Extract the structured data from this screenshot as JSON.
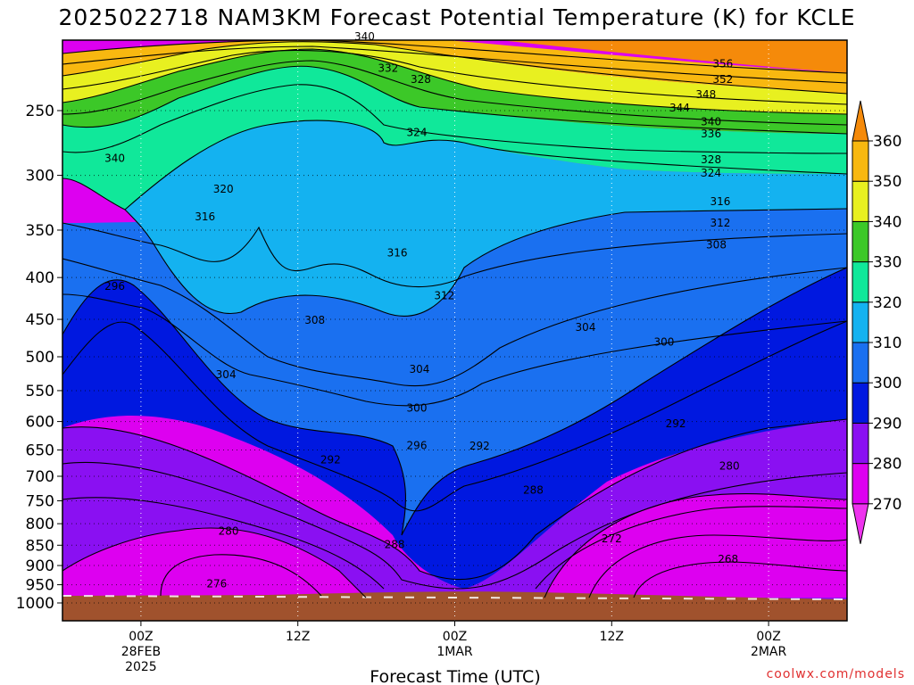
{
  "chart_data": {
    "type": "heatmap",
    "title": "2025022718 NAM3KM Forecast Potential Temperature (K) for KCLE",
    "xlabel": "Forecast Time (UTC)",
    "ylabel": "",
    "credit": "coolwx.com/models",
    "x_ticks": [
      {
        "hour": 6,
        "line1": "00Z",
        "line2": "28FEB",
        "line3": "2025"
      },
      {
        "hour": 18,
        "line1": "12Z",
        "line2": "",
        "line3": ""
      },
      {
        "hour": 30,
        "line1": "00Z",
        "line2": "1MAR",
        "line3": ""
      },
      {
        "hour": 42,
        "line1": "12Z",
        "line2": "",
        "line3": ""
      },
      {
        "hour": 54,
        "line1": "00Z",
        "line2": "2MAR",
        "line3": ""
      }
    ],
    "xlim_hours": [
      0,
      60
    ],
    "y_ticks": [
      "250",
      "300",
      "350",
      "400",
      "450",
      "500",
      "550",
      "600",
      "650",
      "700",
      "750",
      "800",
      "850",
      "900",
      "950",
      "1000"
    ],
    "ylim_hPa": [
      1030,
      200
    ],
    "colorbar": {
      "ticks": [
        "360",
        "350",
        "340",
        "330",
        "320",
        "310",
        "300",
        "290",
        "280",
        "270"
      ],
      "bins": [
        {
          "min": 260,
          "max": 270,
          "color": "#ee33ee"
        },
        {
          "min": 270,
          "max": 280,
          "color": "#dd00f0"
        },
        {
          "min": 280,
          "max": 290,
          "color": "#8a10f2"
        },
        {
          "min": 290,
          "max": 300,
          "color": "#0018e0"
        },
        {
          "min": 300,
          "max": 310,
          "color": "#1a70f0"
        },
        {
          "min": 310,
          "max": 320,
          "color": "#14b2f0"
        },
        {
          "min": 320,
          "max": 330,
          "color": "#10e89a"
        },
        {
          "min": 330,
          "max": 340,
          "color": "#3cc828"
        },
        {
          "min": 340,
          "max": 350,
          "color": "#e8f020"
        },
        {
          "min": 350,
          "max": 360,
          "color": "#f8b810"
        },
        {
          "min": 360,
          "max": 370,
          "color": "#f58a0a"
        }
      ]
    },
    "contour_labels": [
      {
        "text": "340",
        "hour": 23.1,
        "p": 203
      },
      {
        "text": "332",
        "hour": 24.9,
        "p": 222
      },
      {
        "text": "328",
        "hour": 27.4,
        "p": 229
      },
      {
        "text": "324",
        "hour": 27.1,
        "p": 266
      },
      {
        "text": "340",
        "hour": 4.0,
        "p": 286
      },
      {
        "text": "320",
        "hour": 12.3,
        "p": 312
      },
      {
        "text": "316",
        "hour": 10.9,
        "p": 337
      },
      {
        "text": "316",
        "hour": 25.6,
        "p": 373
      },
      {
        "text": "312",
        "hour": 29.2,
        "p": 421
      },
      {
        "text": "308",
        "hour": 19.3,
        "p": 451
      },
      {
        "text": "304",
        "hour": 12.5,
        "p": 526
      },
      {
        "text": "304",
        "hour": 27.3,
        "p": 518
      },
      {
        "text": "300",
        "hour": 27.1,
        "p": 578
      },
      {
        "text": "296",
        "hour": 4.0,
        "p": 410
      },
      {
        "text": "296",
        "hour": 27.1,
        "p": 642
      },
      {
        "text": "292",
        "hour": 20.5,
        "p": 668
      },
      {
        "text": "292",
        "hour": 31.9,
        "p": 643
      },
      {
        "text": "288",
        "hour": 36.0,
        "p": 728
      },
      {
        "text": "288",
        "hour": 25.4,
        "p": 848
      },
      {
        "text": "280",
        "hour": 12.7,
        "p": 817
      },
      {
        "text": "276",
        "hour": 11.8,
        "p": 947
      },
      {
        "text": "304",
        "hour": 40.0,
        "p": 460
      },
      {
        "text": "300",
        "hour": 46.0,
        "p": 480
      },
      {
        "text": "292",
        "hour": 46.9,
        "p": 604
      },
      {
        "text": "280",
        "hour": 51.0,
        "p": 680
      },
      {
        "text": "272",
        "hour": 42.0,
        "p": 835
      },
      {
        "text": "268",
        "hour": 50.9,
        "p": 884
      },
      {
        "text": "356",
        "hour": 50.5,
        "p": 219
      },
      {
        "text": "352",
        "hour": 50.5,
        "p": 229
      },
      {
        "text": "348",
        "hour": 49.2,
        "p": 239
      },
      {
        "text": "344",
        "hour": 47.2,
        "p": 248
      },
      {
        "text": "340",
        "hour": 49.6,
        "p": 258
      },
      {
        "text": "336",
        "hour": 49.6,
        "p": 267
      },
      {
        "text": "328",
        "hour": 49.6,
        "p": 287
      },
      {
        "text": "324",
        "hour": 49.6,
        "p": 298
      },
      {
        "text": "316",
        "hour": 50.3,
        "p": 323
      },
      {
        "text": "312",
        "hour": 50.3,
        "p": 343
      },
      {
        "text": "308",
        "hour": 50.0,
        "p": 365
      }
    ]
  }
}
